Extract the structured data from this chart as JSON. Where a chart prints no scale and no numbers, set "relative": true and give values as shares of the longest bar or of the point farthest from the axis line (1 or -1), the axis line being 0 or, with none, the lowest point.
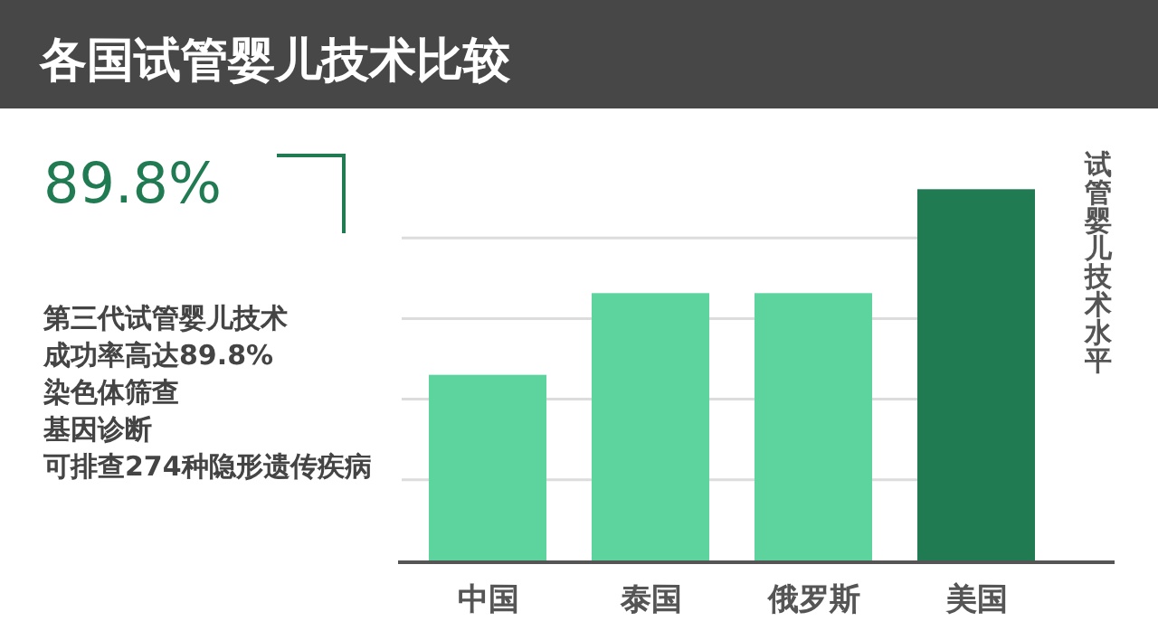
{
  "chart_data": {
    "type": "bar",
    "title": "各国试管婴儿技术比较",
    "ylabel": "试管婴儿技术水平",
    "categories": [
      "中国",
      "泰国",
      "俄罗斯",
      "美国"
    ],
    "values": [
      0.5,
      0.72,
      0.72,
      1
    ],
    "colors": [
      "#5dd39e",
      "#5dd39e",
      "#5dd39e",
      "#207b52"
    ],
    "relative": true,
    "grid": "y",
    "annotations": [
      "89.8%",
      "第三代试管婴儿技术",
      "成功率高达89.8%",
      "染色体筛查",
      "基因诊断",
      "可排查274种隐形遗传疾病"
    ]
  }
}
